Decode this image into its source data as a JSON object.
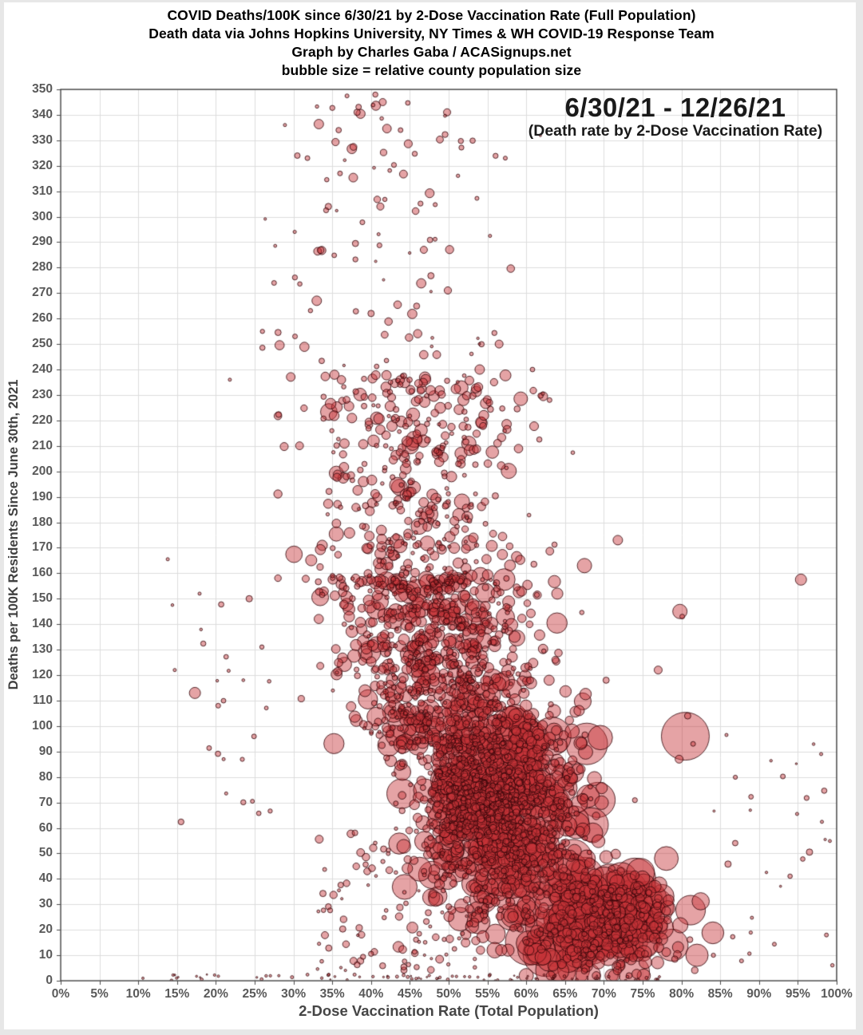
{
  "page": {
    "background": "#e7e7e7",
    "card_background": "#ffffff"
  },
  "header": {
    "line1": "COVID Deaths/100K since 6/30/21 by 2-Dose Vaccination Rate (Full Population)",
    "line2": "Death data via Johns Hopkins University, NY Times & WH COVID-19 Response Team",
    "line3": "Graph by Charles Gaba / ACASignups.net",
    "line4": "bubble size = relative county population size"
  },
  "annotation": {
    "date_range": "6/30/21 - 12/26/21",
    "subtitle": "(Death rate by 2-Dose Vaccination Rate)"
  },
  "chart_data": {
    "type": "scatter",
    "subtype": "bubble",
    "title": "COVID Deaths/100K since 6/30/21 by 2-Dose Vaccination Rate (Full Population)",
    "xlabel": "2-Dose Vaccination Rate (Total Population)",
    "ylabel": "Deaths per 100K Residents Since June 30th, 2021",
    "xlim": [
      0,
      100
    ],
    "ylim": [
      0,
      350
    ],
    "x_tick_step": 5,
    "y_tick_step": 10,
    "x_tick_labels": [
      "0%",
      "5%",
      "10%",
      "15%",
      "20%",
      "25%",
      "30%",
      "35%",
      "40%",
      "45%",
      "50%",
      "55%",
      "60%",
      "65%",
      "70%",
      "75%",
      "80%",
      "85%",
      "90%",
      "95%",
      "100%"
    ],
    "y_tick_labels": [
      0,
      10,
      20,
      30,
      40,
      50,
      60,
      70,
      80,
      90,
      100,
      110,
      120,
      130,
      140,
      150,
      160,
      170,
      180,
      190,
      200,
      210,
      220,
      230,
      240,
      250,
      260,
      270,
      280,
      290,
      300,
      310,
      320,
      330,
      340,
      350
    ],
    "grid": true,
    "legend": "none",
    "note": "Each bubble is one U.S. county; bubble size = relative county population size; strong negative correlation between 2-dose vaccination rate and death rate, dense dark-red core near 45-70% vax / 20-120 deaths, sparse high-death tail at 25-55% vax / 150-345 deaths, large-population counties clustered at 65-85% vax with under 50 deaths",
    "colors": {
      "bubble_fill": "rgba(198,52,55,0.45)",
      "bubble_stroke": "rgba(48,4,8,0.8)",
      "gridline": "#dcdcdc",
      "plot_border": "#4a4a4a",
      "tick": "#4a4a4a"
    },
    "outlier_points": [
      [
        41.5,
        345,
        4.5
      ],
      [
        38.2,
        341,
        4
      ],
      [
        49.8,
        341,
        4.5
      ],
      [
        28.9,
        336,
        2
      ],
      [
        43.8,
        334,
        3
      ],
      [
        30.5,
        324,
        3.5
      ],
      [
        31.8,
        323,
        3
      ],
      [
        57.3,
        323,
        2.5
      ],
      [
        36,
        317,
        3
      ],
      [
        34.5,
        304,
        4
      ],
      [
        41.2,
        304,
        4.5
      ],
      [
        46.8,
        287,
        4.5
      ],
      [
        27.5,
        274,
        3
      ],
      [
        33,
        267,
        6
      ],
      [
        40,
        262,
        4
      ],
      [
        30.2,
        253,
        3
      ],
      [
        21.8,
        236,
        2
      ],
      [
        63,
        228,
        3
      ],
      [
        56.5,
        250,
        5
      ],
      [
        54,
        240,
        6
      ],
      [
        51.9,
        228,
        7
      ],
      [
        52.6,
        211,
        9
      ],
      [
        13.8,
        165.5,
        2
      ],
      [
        17.9,
        152,
        2
      ],
      [
        24.3,
        150,
        4
      ],
      [
        17.3,
        113,
        7
      ],
      [
        20.3,
        108,
        3
      ],
      [
        21,
        87,
        2
      ],
      [
        14.7,
        122,
        2
      ],
      [
        71.8,
        173,
        6
      ],
      [
        67.5,
        163,
        9
      ],
      [
        64,
        152,
        7
      ],
      [
        79.8,
        145,
        9
      ],
      [
        80.1,
        143,
        3
      ],
      [
        77,
        122,
        5
      ],
      [
        80.5,
        96,
        30
      ],
      [
        80.8,
        104,
        4
      ],
      [
        79.7,
        87,
        5
      ],
      [
        81.5,
        93,
        3
      ],
      [
        63.3,
        96,
        24
      ],
      [
        67.8,
        93,
        26
      ],
      [
        69.2,
        71,
        22
      ],
      [
        66.2,
        63,
        18
      ],
      [
        95.4,
        157.5,
        7
      ],
      [
        96.5,
        50.5,
        4
      ],
      [
        86,
        45.8,
        4
      ],
      [
        98,
        89,
        2
      ],
      [
        94.9,
        65.5,
        2
      ],
      [
        98.1,
        62.4,
        2
      ],
      [
        85.8,
        96.5,
        2
      ],
      [
        74,
        40,
        26
      ],
      [
        72,
        20,
        27
      ],
      [
        76.5,
        29,
        24
      ],
      [
        78.8,
        14,
        20
      ],
      [
        82,
        10,
        14
      ],
      [
        10.6,
        1,
        1.5
      ]
    ],
    "cloud_seed": 1226,
    "cloud_clusters": [
      {
        "name": "top-tiny",
        "n": 55,
        "x": {
          "dist": "normal",
          "mean": 43,
          "sd": 8,
          "min": 26,
          "max": 62
        },
        "y": {
          "dist": "uniform",
          "min": 235,
          "max": 350
        },
        "r": {
          "min": 1.5,
          "max": 3.5
        }
      },
      {
        "name": "top-small",
        "n": 45,
        "x": {
          "dist": "normal",
          "mean": 42,
          "sd": 7,
          "min": 26,
          "max": 58
        },
        "y": {
          "dist": "uniform",
          "min": 240,
          "max": 348
        },
        "r": {
          "min": 3,
          "max": 6
        }
      },
      {
        "name": "upper-mid",
        "n": 430,
        "x": {
          "dist": "normal",
          "mean": 45.5,
          "sd": 7,
          "min": 28,
          "max": 66
        },
        "y": {
          "dist": "uniform",
          "min": 152,
          "max": 238
        },
        "r": {
          "mix": [
            {
              "p": 0.9,
              "min": 2,
              "max": 7
            },
            {
              "p": 0.1,
              "min": 7,
              "max": 11
            }
          ]
        }
      },
      {
        "name": "mid-band",
        "n": 720,
        "x": {
          "dist": "normal",
          "mean": 49,
          "sd": 6.5,
          "min": 31,
          "max": 71
        },
        "y": {
          "dist": "uniform",
          "min": 92,
          "max": 158
        },
        "r": {
          "mix": [
            {
              "p": 0.88,
              "min": 2,
              "max": 8
            },
            {
              "p": 0.12,
              "min": 8,
              "max": 14
            }
          ]
        }
      },
      {
        "name": "core-dense",
        "n": 350,
        "x": {
          "dist": "normal",
          "mean": 53,
          "sd": 4,
          "min": 44,
          "max": 64
        },
        "y": {
          "dist": "uniform",
          "min": 58,
          "max": 96
        },
        "r": {
          "mix": [
            {
              "p": 0.9,
              "min": 2,
              "max": 7
            },
            {
              "p": 0.1,
              "min": 7,
              "max": 12
            }
          ]
        }
      },
      {
        "name": "core",
        "n": 950,
        "x": {
          "dist": "normal",
          "mean": 57.5,
          "sd": 5.5,
          "min": 42,
          "max": 74
        },
        "y": {
          "dist": "normal",
          "mean": 64,
          "sd": 22,
          "min": 12,
          "max": 118
        },
        "r": {
          "mix": [
            {
              "p": 0.78,
              "min": 2.5,
              "max": 9
            },
            {
              "p": 0.18,
              "min": 9,
              "max": 18
            },
            {
              "p": 0.04,
              "min": 18,
              "max": 24
            }
          ]
        }
      },
      {
        "name": "arm-bottom-right",
        "n": 430,
        "x": {
          "dist": "normal",
          "mean": 70,
          "sd": 4.5,
          "min": 60,
          "max": 86
        },
        "y": {
          "dist": "normal",
          "mean": 23,
          "sd": 10,
          "min": 2,
          "max": 48
        },
        "r": {
          "mix": [
            {
              "p": 0.67,
              "min": 3,
              "max": 10
            },
            {
              "p": 0.25,
              "min": 10,
              "max": 20
            },
            {
              "p": 0.08,
              "min": 20,
              "max": 30
            }
          ]
        }
      },
      {
        "name": "baseline-dots",
        "n": 85,
        "x": {
          "dist": "uniform",
          "min": 14,
          "max": 78
        },
        "y": {
          "dist": "uniform",
          "min": 0,
          "max": 2.5
        },
        "r": {
          "min": 0.8,
          "max": 2
        }
      },
      {
        "name": "mid-low-scatter",
        "n": 120,
        "x": {
          "dist": "uniform",
          "min": 33,
          "max": 55
        },
        "y": {
          "dist": "uniform",
          "min": 4,
          "max": 60
        },
        "r": {
          "min": 1.5,
          "max": 5
        }
      },
      {
        "name": "left-sparse",
        "n": 22,
        "x": {
          "dist": "uniform",
          "min": 14,
          "max": 27
        },
        "y": {
          "dist": "uniform",
          "min": 55,
          "max": 160
        },
        "r": {
          "min": 1.5,
          "max": 4
        }
      },
      {
        "name": "right-sparse",
        "n": 26,
        "x": {
          "dist": "uniform",
          "min": 84,
          "max": 99.5
        },
        "y": {
          "dist": "uniform",
          "min": 4,
          "max": 100
        },
        "r": {
          "min": 1.2,
          "max": 3.5
        }
      }
    ]
  }
}
